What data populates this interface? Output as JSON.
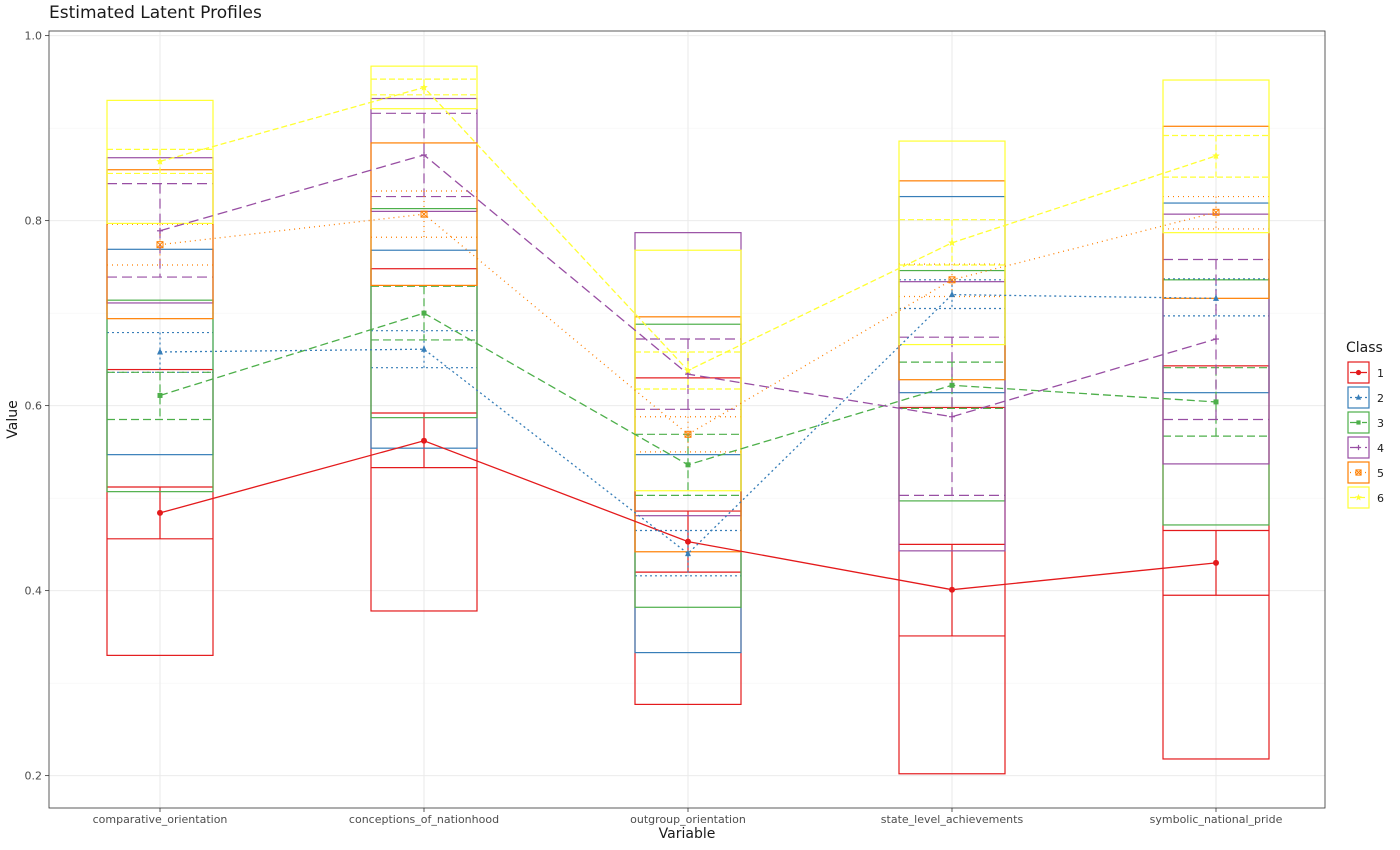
{
  "chart_data": {
    "type": "line",
    "title": "Estimated Latent Profiles",
    "xlabel": "Variable",
    "ylabel": "Value",
    "categories": [
      "comparative_orientation",
      "conceptions_of_nationhood",
      "outgroup_orientation",
      "state_level_achievements",
      "symbolic_national_pride"
    ],
    "ylim": [
      0.165,
      1.005
    ],
    "yticks": [
      0.2,
      0.4,
      0.6,
      0.8,
      1.0
    ],
    "ytick_labels": [
      "0.2",
      "0.4",
      "0.6",
      "0.8",
      "1.0"
    ],
    "grid": true,
    "legend": {
      "title": "Class",
      "position": "right"
    },
    "series": [
      {
        "name": "1",
        "color": "#e41a1c",
        "dash": "",
        "marker": "circle",
        "values": [
          0.484,
          0.562,
          0.453,
          0.401,
          0.43
        ],
        "err_low": [
          0.456,
          0.533,
          0.42,
          0.351,
          0.395
        ],
        "err_high": [
          0.512,
          0.592,
          0.486,
          0.45,
          0.465
        ],
        "box_low": [
          0.33,
          0.378,
          0.277,
          0.202,
          0.218
        ],
        "box_high": [
          0.639,
          0.748,
          0.63,
          0.598,
          0.643
        ]
      },
      {
        "name": "2",
        "color": "#377eb8",
        "dash": "2,3",
        "marker": "triangle",
        "values": [
          0.658,
          0.661,
          0.44,
          0.72,
          0.716
        ],
        "err_low": [
          0.636,
          0.641,
          0.416,
          0.705,
          0.697
        ],
        "err_high": [
          0.679,
          0.681,
          0.465,
          0.736,
          0.737
        ],
        "box_low": [
          0.547,
          0.554,
          0.333,
          0.614,
          0.614
        ],
        "box_high": [
          0.769,
          0.768,
          0.547,
          0.826,
          0.819
        ]
      },
      {
        "name": "3",
        "color": "#4daf4a",
        "dash": "8,4",
        "marker": "square",
        "values": [
          0.611,
          0.7,
          0.536,
          0.622,
          0.604
        ],
        "err_low": [
          0.585,
          0.671,
          0.503,
          0.597,
          0.567
        ],
        "err_high": [
          0.636,
          0.729,
          0.569,
          0.647,
          0.641
        ],
        "box_low": [
          0.507,
          0.587,
          0.382,
          0.497,
          0.471
        ],
        "box_high": [
          0.714,
          0.813,
          0.688,
          0.746,
          0.736
        ]
      },
      {
        "name": "4",
        "color": "#984ea3",
        "dash": "10,5",
        "marker": "cross",
        "values": [
          0.789,
          0.871,
          0.634,
          0.588,
          0.672
        ],
        "err_low": [
          0.739,
          0.826,
          0.596,
          0.503,
          0.585
        ],
        "err_high": [
          0.84,
          0.916,
          0.672,
          0.674,
          0.758
        ],
        "box_low": [
          0.711,
          0.81,
          0.481,
          0.443,
          0.537
        ],
        "box_high": [
          0.868,
          0.932,
          0.787,
          0.734,
          0.807
        ]
      },
      {
        "name": "5",
        "color": "#ff7f00",
        "dash": "1,4",
        "marker": "boxtimes",
        "values": [
          0.774,
          0.807,
          0.569,
          0.736,
          0.809
        ],
        "err_low": [
          0.752,
          0.782,
          0.55,
          0.718,
          0.791
        ],
        "err_high": [
          0.796,
          0.832,
          0.588,
          0.753,
          0.826
        ],
        "box_low": [
          0.694,
          0.73,
          0.442,
          0.628,
          0.716
        ],
        "box_high": [
          0.855,
          0.884,
          0.696,
          0.843,
          0.902
        ]
      },
      {
        "name": "6",
        "color": "#ffff33",
        "dash": "6,3",
        "marker": "star",
        "values": [
          0.864,
          0.944,
          0.638,
          0.776,
          0.87
        ],
        "err_low": [
          0.851,
          0.936,
          0.618,
          0.752,
          0.847
        ],
        "err_high": [
          0.877,
          0.953,
          0.658,
          0.801,
          0.892
        ],
        "box_low": [
          0.797,
          0.921,
          0.508,
          0.666,
          0.787
        ],
        "box_high": [
          0.93,
          0.967,
          0.768,
          0.886,
          0.952
        ]
      }
    ]
  }
}
